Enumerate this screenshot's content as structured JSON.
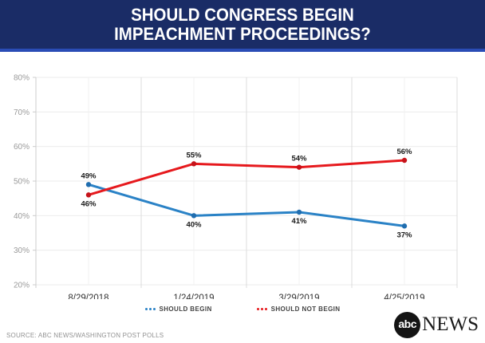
{
  "header": {
    "title_line1": "SHOULD CONGRESS BEGIN",
    "title_line2": "IMPEACHMENT PROCEEDINGS?"
  },
  "colors": {
    "header_bg": "#1a2c66",
    "header_accent": "#2a4cb5",
    "begin_blue": "#2a82c6",
    "not_begin_red": "#e6191d"
  },
  "chart_data": {
    "type": "line",
    "categories": [
      "8/29/2018",
      "1/24/2019",
      "3/29/2019",
      "4/25/2019"
    ],
    "series": [
      {
        "name": "SHOULD BEGIN",
        "color": "#2a82c6",
        "point_color": "#1f6daf",
        "values": [
          49,
          40,
          41,
          37
        ],
        "labels": [
          "49%",
          "40%",
          "41%",
          "37%"
        ],
        "label_pos": [
          "above",
          "below",
          "below",
          "below"
        ]
      },
      {
        "name": "SHOULD NOT BEGIN",
        "color": "#e6191d",
        "point_color": "#c6131a",
        "values": [
          46,
          55,
          54,
          56
        ],
        "labels": [
          "46%",
          "55%",
          "54%",
          "56%"
        ],
        "label_pos": [
          "below",
          "above",
          "above",
          "above"
        ]
      }
    ],
    "ylim": [
      20,
      80
    ],
    "ytick_step": 10,
    "ytick_labels": [
      "20%",
      "30%",
      "40%",
      "50%",
      "60%",
      "70%",
      "80%"
    ],
    "grid": true,
    "legend_position": "bottom"
  },
  "footer": {
    "source": "SOURCE: ABC NEWS/WASHINGTON POST POLLS"
  },
  "logo": {
    "circle_text": "abc",
    "wordmark": "NEWS"
  }
}
